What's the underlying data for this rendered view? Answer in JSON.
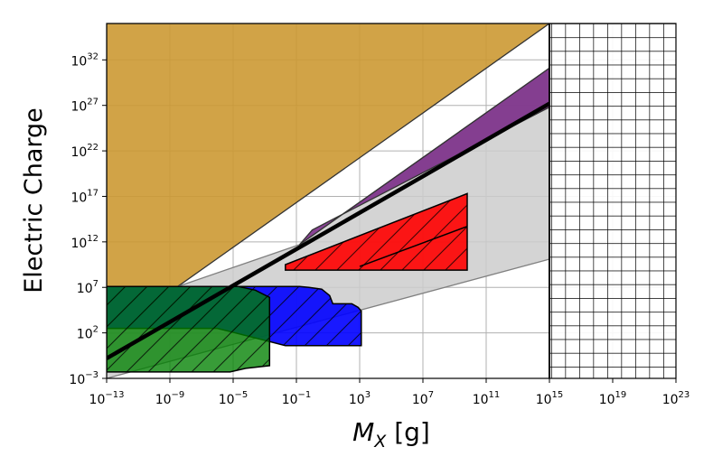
{
  "chart_data": {
    "type": "area",
    "xlabel_main": "M",
    "xlabel_sub": "X",
    "xlabel_unit": " [g]",
    "ylabel": "Electric Charge",
    "x_scale": "log10",
    "y_scale": "log10",
    "xlim_exp": [
      -13,
      23
    ],
    "ylim_exp": [
      -3,
      36
    ],
    "grid": true,
    "x_ticks": [
      {
        "base": "10",
        "exp": "−13",
        "value": -13
      },
      {
        "base": "10",
        "exp": "−9",
        "value": -9
      },
      {
        "base": "10",
        "exp": "−5",
        "value": -5
      },
      {
        "base": "10",
        "exp": "−1",
        "value": -1
      },
      {
        "base": "10",
        "exp": "3",
        "value": 3
      },
      {
        "base": "10",
        "exp": "7",
        "value": 7
      },
      {
        "base": "10",
        "exp": "11",
        "value": 11
      },
      {
        "base": "10",
        "exp": "15",
        "value": 15
      },
      {
        "base": "10",
        "exp": "19",
        "value": 19
      },
      {
        "base": "10",
        "exp": "23",
        "value": 23
      }
    ],
    "y_ticks": [
      {
        "base": "10",
        "exp": "−3",
        "value": -3
      },
      {
        "base": "10",
        "exp": "2",
        "value": 2
      },
      {
        "base": "10",
        "exp": "7",
        "value": 7
      },
      {
        "base": "10",
        "exp": "12",
        "value": 12
      },
      {
        "base": "10",
        "exp": "17",
        "value": 17
      },
      {
        "base": "10",
        "exp": "22",
        "value": 22
      },
      {
        "base": "10",
        "exp": "27",
        "value": 27
      },
      {
        "base": "10",
        "exp": "32",
        "value": 32
      }
    ],
    "regions": [
      {
        "id": "gold-region",
        "color": "#cc9933",
        "hatch": "none",
        "points": [
          [
            -13,
            7.1
          ],
          [
            -8.5,
            7.1
          ],
          [
            15,
            36
          ],
          [
            -13,
            36
          ]
        ]
      },
      {
        "id": "gray-region",
        "color": "#cccccc",
        "hatch": "none",
        "points": [
          [
            -13,
            -3
          ],
          [
            15,
            10.1
          ],
          [
            15,
            31.1
          ],
          [
            -0.8,
            11.7
          ],
          [
            -8.5,
            7.1
          ],
          [
            -13,
            7.1
          ]
        ]
      },
      {
        "id": "purple-region",
        "color": "#7b2d88",
        "hatch": "none",
        "points": [
          [
            -0.8,
            11.7
          ],
          [
            15,
            31.1
          ],
          [
            15,
            26.8
          ],
          [
            0,
            13.3
          ]
        ]
      },
      {
        "id": "red-region",
        "color": "#ff0000",
        "hatch": "diagonal",
        "points": [
          [
            3,
            9.3
          ],
          [
            9.8,
            13.7
          ],
          [
            9.8,
            17.3
          ],
          [
            -1.7,
            9.5
          ],
          [
            -1.7,
            8.9
          ],
          [
            9.8,
            8.9
          ],
          [
            9.8,
            13.7
          ]
        ]
      },
      {
        "id": "blue-region",
        "color": "#0000ff",
        "hatch": "diagonal",
        "points": [
          [
            -13,
            7.1
          ],
          [
            -0.8,
            7.1
          ],
          [
            -0.2,
            7
          ],
          [
            0.6,
            6.8
          ],
          [
            1.1,
            6.1
          ],
          [
            1.3,
            5.2
          ],
          [
            2.5,
            5.2
          ],
          [
            2.9,
            4.8
          ],
          [
            3.1,
            4.4
          ],
          [
            3.1,
            0.6
          ],
          [
            -1.7,
            0.6
          ],
          [
            -6,
            2.5
          ],
          [
            -13,
            2.5
          ]
        ]
      },
      {
        "id": "green-region",
        "color": "#008000",
        "hatch": "diagonal",
        "points": [
          [
            -13,
            -2.3
          ],
          [
            -5.2,
            -2.3
          ],
          [
            -4.2,
            -1.9
          ],
          [
            -2.7,
            -1.6
          ],
          [
            -2.7,
            5.9
          ],
          [
            -3.6,
            6.7
          ],
          [
            -4.7,
            7.1
          ],
          [
            -13,
            7.1
          ]
        ]
      },
      {
        "id": "crosshatch-region",
        "color": "#ffffff",
        "hatch": "grid",
        "points": [
          [
            15,
            -3
          ],
          [
            23,
            -3
          ],
          [
            23,
            36
          ],
          [
            15,
            36
          ]
        ]
      }
    ],
    "line": {
      "color": "#000000",
      "x": [
        -13,
        15
      ],
      "y": [
        -0.8,
        27.2
      ]
    }
  }
}
